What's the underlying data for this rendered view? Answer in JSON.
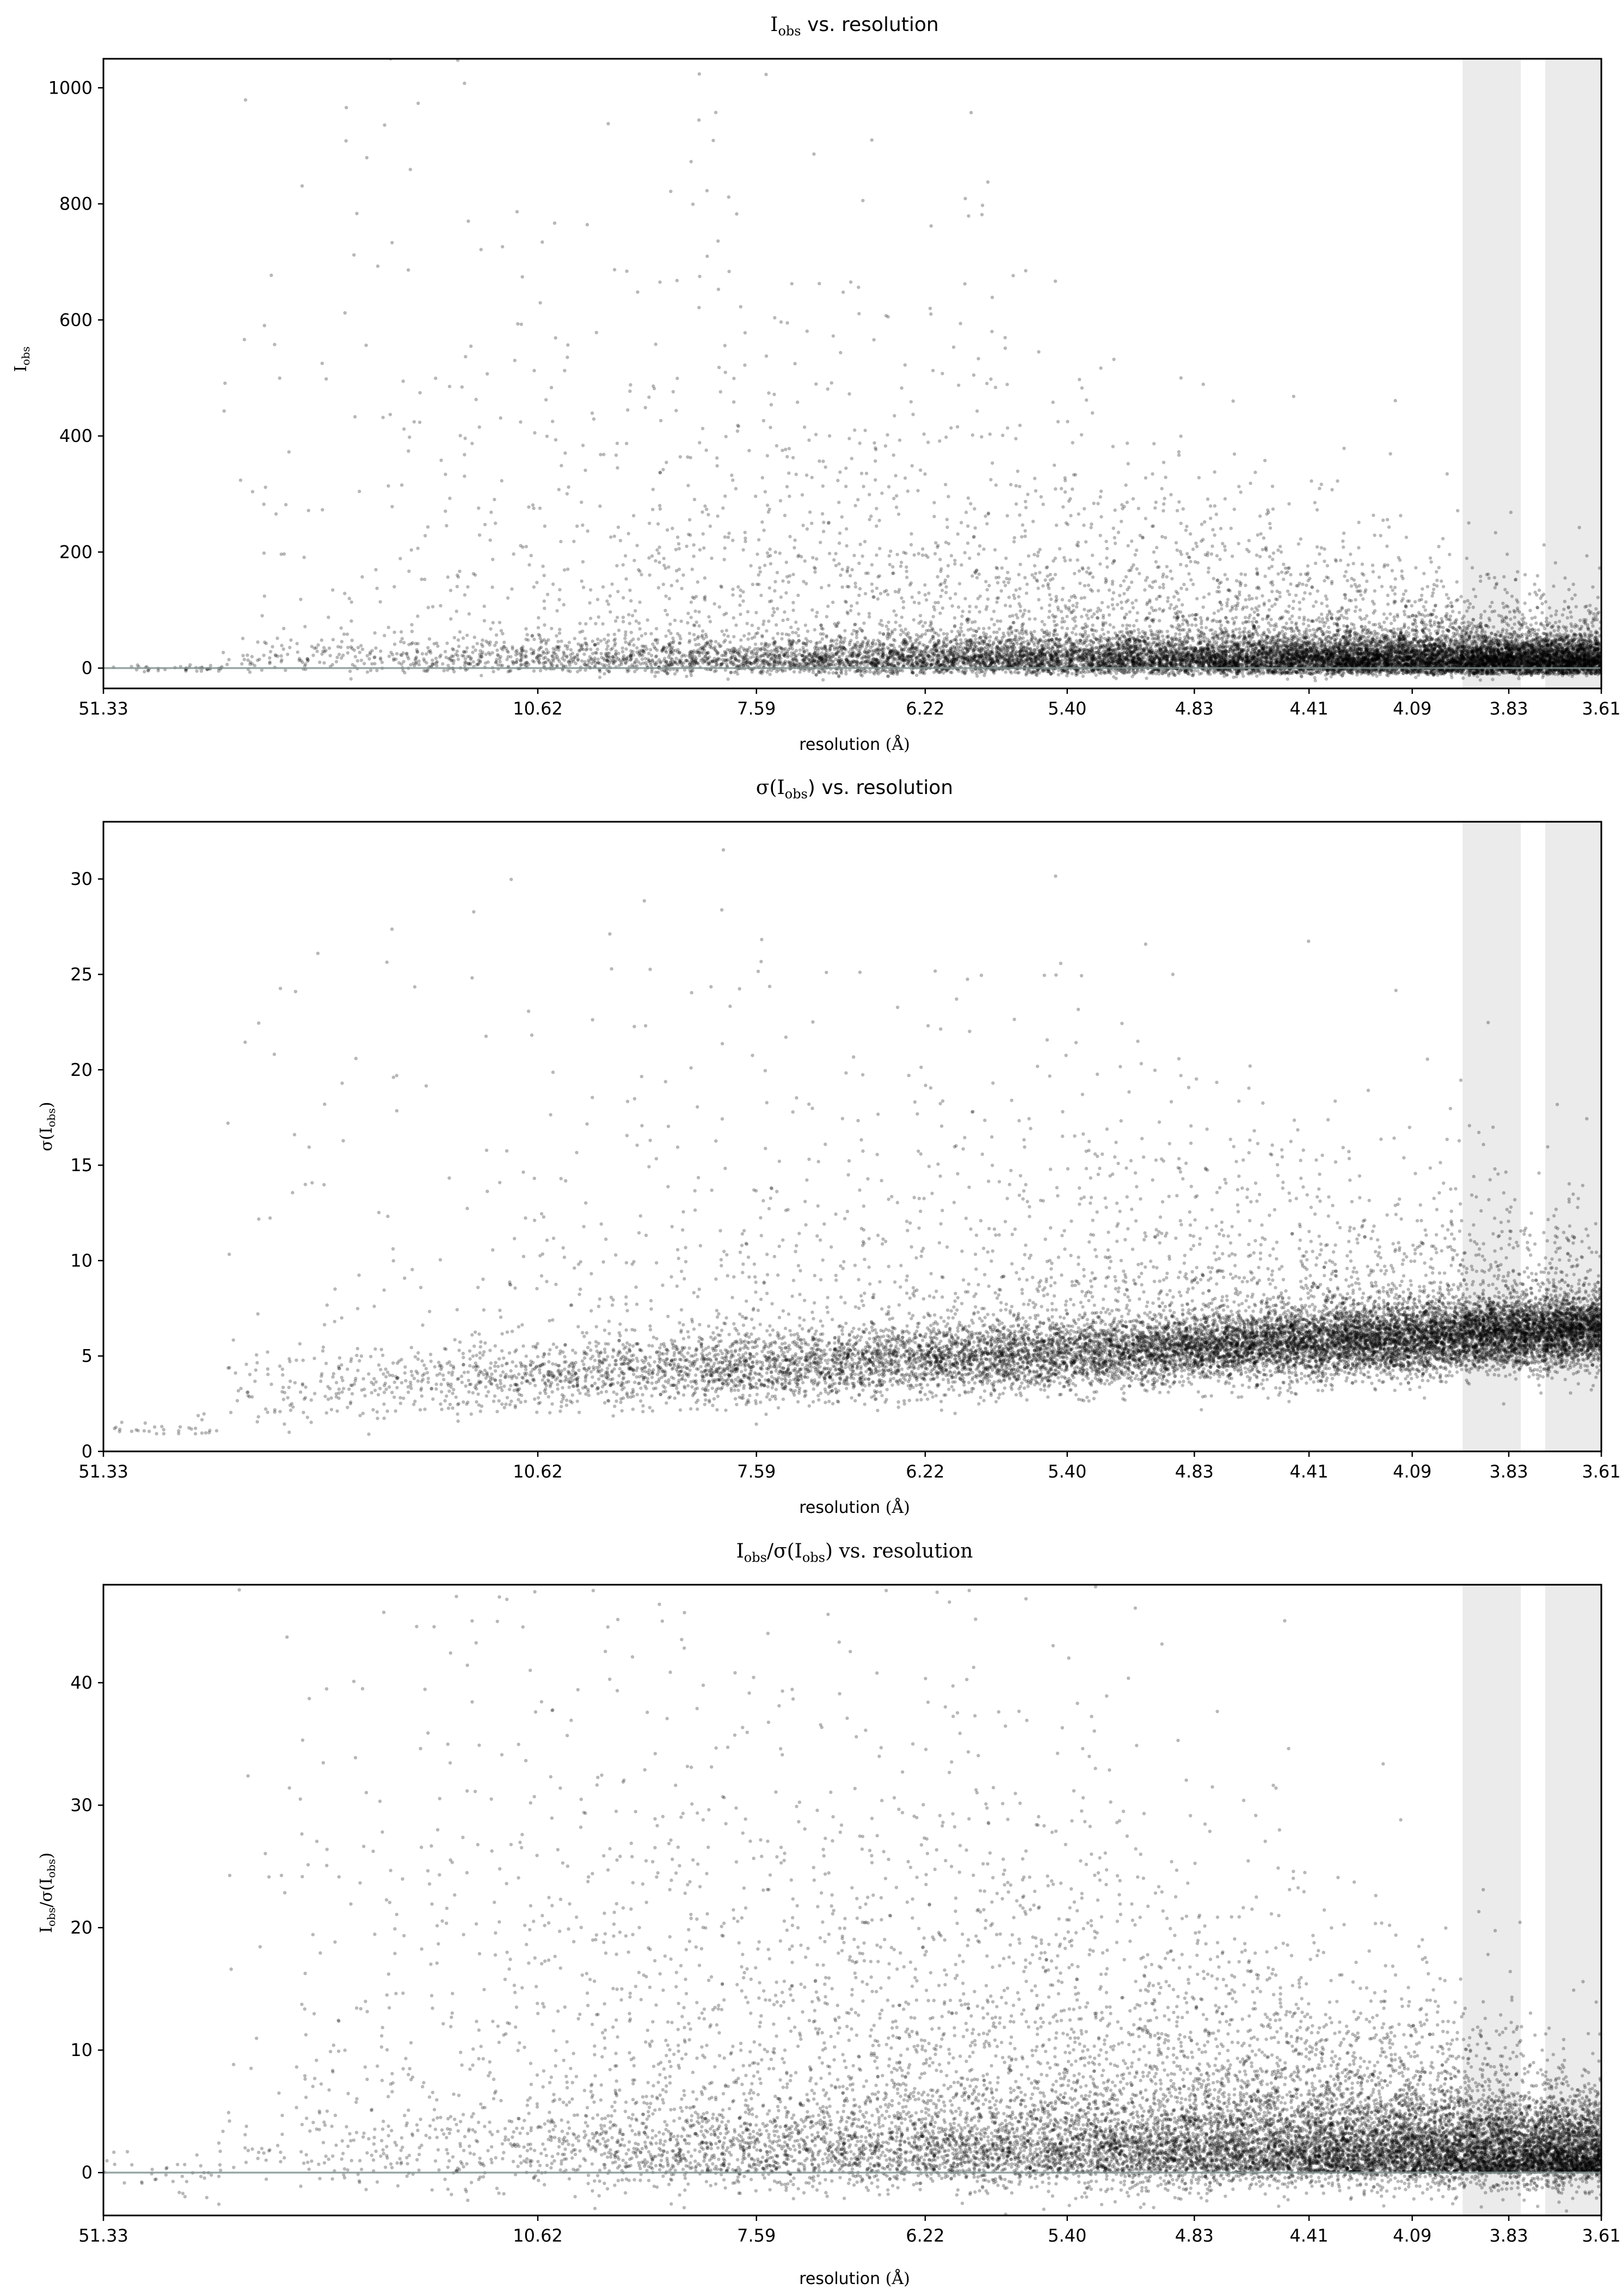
{
  "figure": {
    "background": "#ffffff",
    "point_color": "#000000",
    "point_opacity": 0.28,
    "band_color": "#ebebeb",
    "zero_line_color": "#7f9090"
  },
  "x_axis_common": {
    "label": "resolution",
    "unit": "(Å)",
    "scale": "reciprocal",
    "tick_labels": [
      "51.33",
      "10.62",
      "7.59",
      "6.22",
      "5.40",
      "4.83",
      "4.41",
      "4.09",
      "3.83",
      "3.61"
    ],
    "domain": [
      51.33,
      3.61
    ]
  },
  "shaded_bands_resolution": [
    [
      3.95,
      3.8
    ],
    [
      3.74,
      3.6
    ]
  ],
  "chart_data": [
    {
      "type": "scatter",
      "title": {
        "base": "I",
        "sub": "obs",
        "tail": " vs. resolution"
      },
      "ylabel": {
        "base": "I",
        "sub": "obs"
      },
      "ylim": [
        -35,
        1050
      ],
      "yticks": [
        "0",
        "200",
        "400",
        "600",
        "800",
        "1000"
      ],
      "zero_line": 0,
      "grid": false,
      "series": [
        {
          "distribution": "intensity",
          "point_count": 15000
        }
      ]
    },
    {
      "type": "scatter",
      "title": {
        "base": "σ(I",
        "sub": "obs",
        "tail": ") vs. resolution"
      },
      "ylabel": {
        "base": "σ(I",
        "sub": "obs",
        "tail": ")"
      },
      "ylim": [
        0,
        33
      ],
      "yticks": [
        "0",
        "5",
        "10",
        "15",
        "20",
        "25",
        "30"
      ],
      "zero_line": null,
      "grid": false,
      "series": [
        {
          "distribution": "sigma",
          "point_count": 15000
        }
      ]
    },
    {
      "type": "scatter",
      "title": {
        "base": "I",
        "sub": "obs",
        "tail": "/σ(I",
        "sub2": "obs",
        "tail2": ") vs. resolution"
      },
      "ylabel": {
        "base": "I",
        "sub": "obs",
        "tail": "/σ(I",
        "sub2": "obs",
        "tail2": ")"
      },
      "ylim": [
        -3.5,
        48
      ],
      "yticks": [
        "0",
        "10",
        "20",
        "30",
        "40"
      ],
      "zero_line": 0,
      "grid": false,
      "series": [
        {
          "distribution": "snr",
          "point_count": 15000
        }
      ]
    }
  ]
}
